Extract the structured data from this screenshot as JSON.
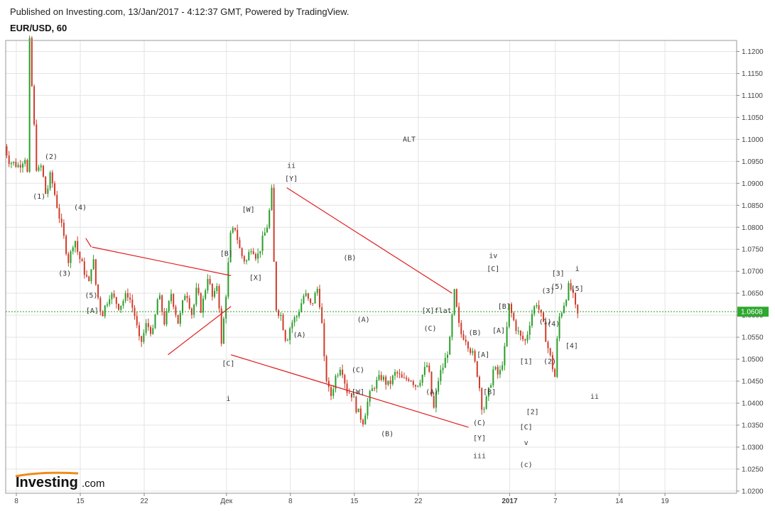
{
  "header": {
    "published": "Published on Investing.com, 13/Jan/2017 - 4:12:37 GMT, Powered by TradingView.",
    "symbol": "EUR/USD, 60"
  },
  "logo": {
    "brand": "Investing",
    "suffix": ".com"
  },
  "colors": {
    "up": "#2a9d2a",
    "down": "#d13b2a",
    "trendline": "#e02020",
    "current_line": "#22a022",
    "price_badge": "#2ea82e",
    "grid": "#e4e4e4"
  },
  "chart_data": {
    "type": "candlestick",
    "ylim": [
      1.0195,
      1.1225
    ],
    "y_ticks": [
      "1.1200",
      "1.1150",
      "1.1100",
      "1.1050",
      "1.1000",
      "1.0950",
      "1.0900",
      "1.0850",
      "1.0800",
      "1.0750",
      "1.0700",
      "1.0650",
      "1.0600",
      "1.0550",
      "1.0500",
      "1.0450",
      "1.0400",
      "1.0350",
      "1.0300",
      "1.0250",
      "1.0200"
    ],
    "x_ticks": [
      {
        "label": "8",
        "day": 0
      },
      {
        "label": "15",
        "day": 7
      },
      {
        "label": "22",
        "day": 14
      },
      {
        "label": "Дек",
        "day": 23
      },
      {
        "label": "8",
        "day": 30
      },
      {
        "label": "15",
        "day": 37
      },
      {
        "label": "22",
        "day": 44
      },
      {
        "label": "2017",
        "day": 54
      },
      {
        "label": "7",
        "day": 59
      },
      {
        "label": "14",
        "day": 66
      },
      {
        "label": "19",
        "day": 71
      }
    ],
    "current_price": "1.0608",
    "annotation_title": "ALT",
    "path": [
      [
        -1.3,
        1.1
      ],
      [
        -0.5,
        1.095
      ],
      [
        0.5,
        1.094
      ],
      [
        1.2,
        1.096
      ],
      [
        1.6,
        1.09
      ],
      [
        1.7,
        1.122
      ],
      [
        2.0,
        1.11
      ],
      [
        2.5,
        1.092
      ],
      [
        3.0,
        1.094
      ],
      [
        3.5,
        1.087
      ],
      [
        4.0,
        1.092
      ],
      [
        5.2,
        1.08
      ],
      [
        6.0,
        1.072
      ],
      [
        6.6,
        1.078
      ],
      [
        7.0,
        1.074
      ],
      [
        8.2,
        1.067
      ],
      [
        8.6,
        1.074
      ],
      [
        9.0,
        1.066
      ],
      [
        9.6,
        1.06
      ],
      [
        10.5,
        1.065
      ],
      [
        11.5,
        1.062
      ],
      [
        12.5,
        1.065
      ],
      [
        13.2,
        1.06
      ],
      [
        13.8,
        1.053
      ],
      [
        14.5,
        1.058
      ],
      [
        15.2,
        1.056
      ],
      [
        15.8,
        1.065
      ],
      [
        16.5,
        1.058
      ],
      [
        17.2,
        1.065
      ],
      [
        18.0,
        1.058
      ],
      [
        18.8,
        1.066
      ],
      [
        19.5,
        1.06
      ],
      [
        20.0,
        1.066
      ],
      [
        20.5,
        1.061
      ],
      [
        21.2,
        1.069
      ],
      [
        21.8,
        1.063
      ],
      [
        22.3,
        1.068
      ],
      [
        22.7,
        1.053
      ],
      [
        23.2,
        1.065
      ],
      [
        23.7,
        1.078
      ],
      [
        24.2,
        1.08
      ],
      [
        24.8,
        1.074
      ],
      [
        25.4,
        1.072
      ],
      [
        26.0,
        1.076
      ],
      [
        26.6,
        1.073
      ],
      [
        27.2,
        1.077
      ],
      [
        27.8,
        1.081
      ],
      [
        28.2,
        1.088
      ],
      [
        28.6,
        1.062
      ],
      [
        29.2,
        1.06
      ],
      [
        29.8,
        1.054
      ],
      [
        30.3,
        1.058
      ],
      [
        31.0,
        1.06
      ],
      [
        31.8,
        1.065
      ],
      [
        32.5,
        1.062
      ],
      [
        33.2,
        1.066
      ],
      [
        33.6,
        1.061
      ],
      [
        34.0,
        1.048
      ],
      [
        34.6,
        1.041
      ],
      [
        35.2,
        1.046
      ],
      [
        35.8,
        1.049
      ],
      [
        36.4,
        1.043
      ],
      [
        37.0,
        1.042
      ],
      [
        37.6,
        1.038
      ],
      [
        38.2,
        1.036
      ],
      [
        38.8,
        1.041
      ],
      [
        39.4,
        1.044
      ],
      [
        40.2,
        1.046
      ],
      [
        41.0,
        1.044
      ],
      [
        41.8,
        1.047
      ],
      [
        42.6,
        1.045
      ],
      [
        43.3,
        1.046
      ],
      [
        44.0,
        1.044
      ],
      [
        44.6,
        1.046
      ],
      [
        45.3,
        1.049
      ],
      [
        45.9,
        1.038
      ],
      [
        46.5,
        1.046
      ],
      [
        47.1,
        1.049
      ],
      [
        47.7,
        1.054
      ],
      [
        48.2,
        1.065
      ],
      [
        48.8,
        1.056
      ],
      [
        49.4,
        1.055
      ],
      [
        50.2,
        1.051
      ],
      [
        50.8,
        1.046
      ],
      [
        51.3,
        1.038
      ],
      [
        51.9,
        1.042
      ],
      [
        52.5,
        1.048
      ],
      [
        53.1,
        1.046
      ],
      [
        53.7,
        1.052
      ],
      [
        54.2,
        1.062
      ],
      [
        54.8,
        1.058
      ],
      [
        55.4,
        1.055
      ],
      [
        56.0,
        1.054
      ],
      [
        56.6,
        1.06
      ],
      [
        57.2,
        1.063
      ],
      [
        57.8,
        1.059
      ],
      [
        58.4,
        1.053
      ],
      [
        59.2,
        1.046
      ],
      [
        59.6,
        1.059
      ],
      [
        60.1,
        1.062
      ],
      [
        60.8,
        1.067
      ],
      [
        61.2,
        1.064
      ],
      [
        61.6,
        1.06
      ]
    ],
    "trendlines": [
      [
        [
          8.3,
          1.0755
        ],
        [
          23.5,
          1.069
        ]
      ],
      [
        [
          7.6,
          1.0775
        ],
        [
          8.2,
          1.0755
        ]
      ],
      [
        [
          16.6,
          1.051
        ],
        [
          23.5,
          1.062
        ]
      ],
      [
        [
          23.5,
          1.051
        ],
        [
          49.5,
          1.0345
        ]
      ],
      [
        [
          29.6,
          1.089
        ],
        [
          47.7,
          1.065
        ]
      ]
    ],
    "wave_labels": [
      {
        "text": "(2)",
        "day": 3.8,
        "price": 1.0955
      },
      {
        "text": "(1)",
        "day": 2.5,
        "price": 1.0865
      },
      {
        "text": "(4)",
        "day": 7.0,
        "price": 1.084
      },
      {
        "text": "(3)",
        "day": 5.3,
        "price": 1.069
      },
      {
        "text": "(5)",
        "day": 8.2,
        "price": 1.064
      },
      {
        "text": "[A]",
        "day": 8.3,
        "price": 1.0605
      },
      {
        "text": "[W]",
        "day": 25.4,
        "price": 1.0835
      },
      {
        "text": "[B]",
        "day": 23.0,
        "price": 1.0735
      },
      {
        "text": "[X]",
        "day": 26.2,
        "price": 1.068
      },
      {
        "text": "ii",
        "day": 30.1,
        "price": 1.0935
      },
      {
        "text": "[Y]",
        "day": 30.1,
        "price": 1.0905
      },
      {
        "text": "[C]",
        "day": 23.2,
        "price": 1.0485
      },
      {
        "text": "i",
        "day": 23.2,
        "price": 1.0405
      },
      {
        "text": "ALT",
        "day": 43.0,
        "price": 1.0995
      },
      {
        "text": "(B)",
        "day": 36.5,
        "price": 1.0725
      },
      {
        "text": "(A)",
        "day": 31.0,
        "price": 1.055
      },
      {
        "text": "(A)",
        "day": 38.0,
        "price": 1.0585
      },
      {
        "text": "(C)",
        "day": 37.4,
        "price": 1.047
      },
      {
        "text": "[W]",
        "day": 37.4,
        "price": 1.042
      },
      {
        "text": "(B)",
        "day": 40.6,
        "price": 1.0325
      },
      {
        "text": "[X]flat",
        "day": 46.0,
        "price": 1.0605
      },
      {
        "text": "(C)",
        "day": 45.3,
        "price": 1.0565
      },
      {
        "text": "(A)",
        "day": 45.5,
        "price": 1.042
      },
      {
        "text": "(B)",
        "day": 50.2,
        "price": 1.0555
      },
      {
        "text": "[A]",
        "day": 51.1,
        "price": 1.0505
      },
      {
        "text": "[B]",
        "day": 51.8,
        "price": 1.042
      },
      {
        "text": "(C)",
        "day": 50.7,
        "price": 1.035
      },
      {
        "text": "[Y]",
        "day": 50.7,
        "price": 1.0315
      },
      {
        "text": "iii",
        "day": 50.7,
        "price": 1.0275
      },
      {
        "text": "iv",
        "day": 52.2,
        "price": 1.073
      },
      {
        "text": "[C]",
        "day": 52.2,
        "price": 1.07
      },
      {
        "text": "[A]",
        "day": 52.8,
        "price": 1.056
      },
      {
        "text": "[B]",
        "day": 53.4,
        "price": 1.0615
      },
      {
        "text": "[1]",
        "day": 55.8,
        "price": 1.049
      },
      {
        "text": "[2]",
        "day": 56.5,
        "price": 1.0375
      },
      {
        "text": "[C]",
        "day": 55.8,
        "price": 1.034
      },
      {
        "text": "v",
        "day": 55.8,
        "price": 1.0305
      },
      {
        "text": "(c)",
        "day": 55.8,
        "price": 1.0255
      },
      {
        "text": "(1)",
        "day": 57.9,
        "price": 1.058
      },
      {
        "text": "(2)",
        "day": 58.4,
        "price": 1.049
      },
      {
        "text": "(3)",
        "day": 58.2,
        "price": 1.065
      },
      {
        "text": "(4)",
        "day": 58.8,
        "price": 1.0575
      },
      {
        "text": "(5)",
        "day": 59.2,
        "price": 1.066
      },
      {
        "text": "[3]",
        "day": 59.3,
        "price": 1.069
      },
      {
        "text": "[4]",
        "day": 60.8,
        "price": 1.0525
      },
      {
        "text": "[5]",
        "day": 61.4,
        "price": 1.0655
      },
      {
        "text": "i",
        "day": 61.4,
        "price": 1.07
      },
      {
        "text": "ii",
        "day": 63.3,
        "price": 1.041
      }
    ]
  }
}
